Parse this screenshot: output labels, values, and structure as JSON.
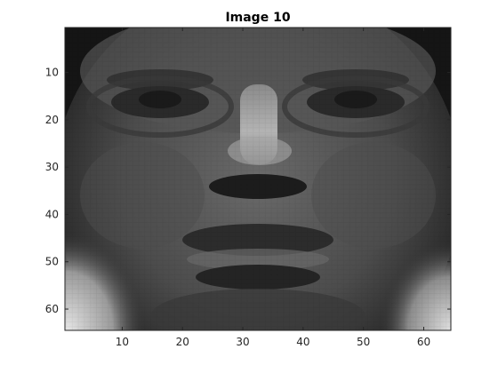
{
  "figure": {
    "title": "Image 10",
    "image_description_icon": "grayscale-face-image",
    "colors": {
      "background": "#ffffff",
      "axes_frame": "#262626",
      "tick_label": "#262626"
    },
    "image_grid": {
      "rows": 64,
      "cols": 64,
      "colormap": "gray"
    },
    "x_axis": {
      "range": [
        0.5,
        64.5
      ],
      "ticks": [
        10,
        20,
        30,
        40,
        50,
        60
      ],
      "tick_labels": [
        "10",
        "20",
        "30",
        "40",
        "50",
        "60"
      ]
    },
    "y_axis": {
      "range": [
        0.5,
        64.5
      ],
      "direction": "reverse",
      "ticks": [
        10,
        20,
        30,
        40,
        50,
        60
      ],
      "tick_labels": [
        "10",
        "20",
        "30",
        "40",
        "50",
        "60"
      ]
    }
  }
}
